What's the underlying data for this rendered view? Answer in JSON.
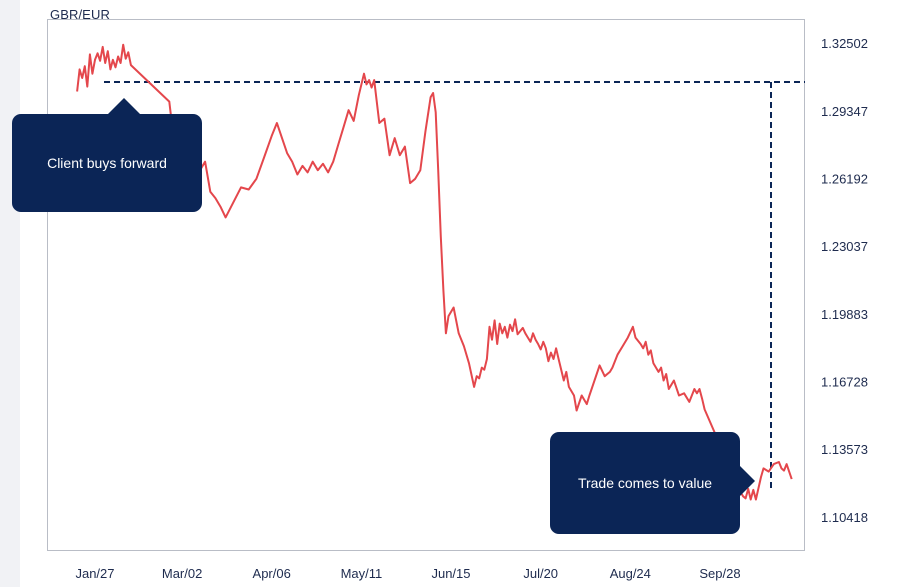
{
  "chart_data": {
    "type": "line",
    "title": "GBR/EUR",
    "x_ticks": [
      "Jan/27",
      "Mar/02",
      "Apr/06",
      "May/11",
      "Jun/15",
      "Jul/20",
      "Aug/24",
      "Sep/28"
    ],
    "y_ticks": [
      "1.32502",
      "1.29347",
      "1.26192",
      "1.23037",
      "1.19883",
      "1.16728",
      "1.13573",
      "1.10418"
    ],
    "ylim": [
      1.0885,
      1.3365
    ],
    "grid": false,
    "series": [
      {
        "color": "#e4474c",
        "points": [
          [
            "Jan/20",
            1.3027
          ],
          [
            "Jan/21",
            1.313
          ],
          [
            "Jan/22",
            1.309
          ],
          [
            "Jan/23",
            1.3145
          ],
          [
            "Jan/24",
            1.305
          ],
          [
            "Jan/25",
            1.32
          ],
          [
            "Jan/26",
            1.311
          ],
          [
            "Jan/27",
            1.3175
          ],
          [
            "Jan/28",
            1.3205
          ],
          [
            "Jan/29",
            1.317
          ],
          [
            "Jan/30",
            1.3235
          ],
          [
            "Jan/31",
            1.316
          ],
          [
            "Feb/01",
            1.3215
          ],
          [
            "Feb/02",
            1.313
          ],
          [
            "Feb/03",
            1.3175
          ],
          [
            "Feb/04",
            1.314
          ],
          [
            "Feb/05",
            1.319
          ],
          [
            "Feb/06",
            1.316
          ],
          [
            "Feb/07",
            1.3245
          ],
          [
            "Feb/08",
            1.318
          ],
          [
            "Feb/09",
            1.321
          ],
          [
            "Feb/10",
            1.315
          ],
          [
            "Feb/25",
            1.298
          ],
          [
            "Feb/26",
            1.288
          ],
          [
            "Feb/27",
            1.278
          ],
          [
            "Feb/28",
            1.282
          ],
          [
            "Mar/01",
            1.275
          ],
          [
            "Mar/03",
            1.28
          ],
          [
            "Mar/05",
            1.268
          ],
          [
            "Mar/07",
            1.272
          ],
          [
            "Mar/09",
            1.266
          ],
          [
            "Mar/11",
            1.27
          ],
          [
            "Mar/13",
            1.256
          ],
          [
            "Mar/15",
            1.253
          ],
          [
            "Mar/17",
            1.249
          ],
          [
            "Mar/19",
            1.244
          ],
          [
            "Mar/22",
            1.251
          ],
          [
            "Mar/25",
            1.258
          ],
          [
            "Mar/28",
            1.257
          ],
          [
            "Mar/31",
            1.262
          ],
          [
            "Apr/03",
            1.272
          ],
          [
            "Apr/06",
            1.282
          ],
          [
            "Apr/08",
            1.288
          ],
          [
            "Apr/10",
            1.281
          ],
          [
            "Apr/12",
            1.274
          ],
          [
            "Apr/14",
            1.27
          ],
          [
            "Apr/16",
            1.264
          ],
          [
            "Apr/18",
            1.268
          ],
          [
            "Apr/20",
            1.265
          ],
          [
            "Apr/22",
            1.27
          ],
          [
            "Apr/24",
            1.266
          ],
          [
            "Apr/26",
            1.269
          ],
          [
            "Apr/28",
            1.265
          ],
          [
            "Apr/30",
            1.27
          ],
          [
            "May/02",
            1.278
          ],
          [
            "May/04",
            1.286
          ],
          [
            "May/06",
            1.294
          ],
          [
            "May/08",
            1.289
          ],
          [
            "May/10",
            1.301
          ],
          [
            "May/12",
            1.311
          ],
          [
            "May/13",
            1.306
          ],
          [
            "May/14",
            1.308
          ],
          [
            "May/15",
            1.3045
          ],
          [
            "May/16",
            1.308
          ],
          [
            "May/18",
            1.288
          ],
          [
            "May/20",
            1.29
          ],
          [
            "May/22",
            1.273
          ],
          [
            "May/24",
            1.281
          ],
          [
            "May/26",
            1.273
          ],
          [
            "May/28",
            1.277
          ],
          [
            "May/30",
            1.26
          ],
          [
            "Jun/01",
            1.262
          ],
          [
            "Jun/03",
            1.266
          ],
          [
            "Jun/05",
            1.284
          ],
          [
            "Jun/07",
            1.3
          ],
          [
            "Jun/08",
            1.302
          ],
          [
            "Jun/09",
            1.293
          ],
          [
            "Jun/10",
            1.266
          ],
          [
            "Jun/11",
            1.235
          ],
          [
            "Jun/12",
            1.21
          ],
          [
            "Jun/13",
            1.19
          ],
          [
            "Jun/14",
            1.198
          ],
          [
            "Jun/16",
            1.202
          ],
          [
            "Jun/18",
            1.19
          ],
          [
            "Jun/20",
            1.184
          ],
          [
            "Jun/22",
            1.176
          ],
          [
            "Jun/24",
            1.165
          ],
          [
            "Jun/25",
            1.17
          ],
          [
            "Jun/26",
            1.169
          ],
          [
            "Jun/27",
            1.174
          ],
          [
            "Jun/28",
            1.173
          ],
          [
            "Jun/29",
            1.178
          ],
          [
            "Jun/30",
            1.193
          ],
          [
            "Jul/01",
            1.187
          ],
          [
            "Jul/02",
            1.196
          ],
          [
            "Jul/03",
            1.185
          ],
          [
            "Jul/04",
            1.1945
          ],
          [
            "Jul/05",
            1.19
          ],
          [
            "Jul/06",
            1.193
          ],
          [
            "Jul/07",
            1.188
          ],
          [
            "Jul/08",
            1.194
          ],
          [
            "Jul/09",
            1.191
          ],
          [
            "Jul/10",
            1.1965
          ],
          [
            "Jul/11",
            1.1895
          ],
          [
            "Jul/12",
            1.191
          ],
          [
            "Jul/13",
            1.1925
          ],
          [
            "Jul/14",
            1.19
          ],
          [
            "Jul/15",
            1.188
          ],
          [
            "Jul/16",
            1.186
          ],
          [
            "Jul/17",
            1.19
          ],
          [
            "Jul/18",
            1.187
          ],
          [
            "Jul/19",
            1.185
          ],
          [
            "Jul/20",
            1.1825
          ],
          [
            "Jul/21",
            1.186
          ],
          [
            "Jul/22",
            1.183
          ],
          [
            "Jul/23",
            1.177
          ],
          [
            "Jul/24",
            1.181
          ],
          [
            "Jul/25",
            1.178
          ],
          [
            "Jul/26",
            1.183
          ],
          [
            "Jul/27",
            1.178
          ],
          [
            "Jul/29",
            1.168
          ],
          [
            "Jul/30",
            1.172
          ],
          [
            "Jul/31",
            1.165
          ],
          [
            "Aug/02",
            1.161
          ],
          [
            "Aug/03",
            1.154
          ],
          [
            "Aug/05",
            1.161
          ],
          [
            "Aug/06",
            1.159
          ],
          [
            "Aug/07",
            1.157
          ],
          [
            "Aug/08",
            1.161
          ],
          [
            "Aug/10",
            1.168
          ],
          [
            "Aug/12",
            1.175
          ],
          [
            "Aug/14",
            1.17
          ],
          [
            "Aug/16",
            1.172
          ],
          [
            "Aug/17",
            1.174
          ],
          [
            "Aug/19",
            1.18
          ],
          [
            "Aug/21",
            1.184
          ],
          [
            "Aug/23",
            1.188
          ],
          [
            "Aug/25",
            1.193
          ],
          [
            "Aug/26",
            1.188
          ],
          [
            "Aug/28",
            1.185
          ],
          [
            "Aug/29",
            1.183
          ],
          [
            "Aug/30",
            1.186
          ],
          [
            "Aug/31",
            1.18
          ],
          [
            "Sep/01",
            1.182
          ],
          [
            "Sep/02",
            1.176
          ],
          [
            "Sep/04",
            1.172
          ],
          [
            "Sep/05",
            1.174
          ],
          [
            "Sep/06",
            1.168
          ],
          [
            "Sep/07",
            1.171
          ],
          [
            "Sep/08",
            1.164
          ],
          [
            "Sep/10",
            1.168
          ],
          [
            "Sep/12",
            1.161
          ],
          [
            "Sep/14",
            1.162
          ],
          [
            "Sep/16",
            1.158
          ],
          [
            "Sep/18",
            1.164
          ],
          [
            "Sep/19",
            1.162
          ],
          [
            "Sep/20",
            1.164
          ],
          [
            "Sep/21",
            1.1595
          ],
          [
            "Sep/22",
            1.1545
          ],
          [
            "Oct/06",
            1.116
          ],
          [
            "Oct/07",
            1.114
          ],
          [
            "Oct/08",
            1.113
          ],
          [
            "Oct/09",
            1.1175
          ],
          [
            "Oct/10",
            1.1125
          ],
          [
            "Oct/11",
            1.117
          ],
          [
            "Oct/12",
            1.1125
          ],
          [
            "Oct/14",
            1.123
          ],
          [
            "Oct/15",
            1.127
          ],
          [
            "Oct/17",
            1.1255
          ],
          [
            "Oct/19",
            1.129
          ],
          [
            "Oct/21",
            1.13
          ],
          [
            "Oct/22",
            1.127
          ],
          [
            "Oct/23",
            1.126
          ],
          [
            "Oct/24",
            1.129
          ],
          [
            "Oct/26",
            1.122
          ]
        ]
      }
    ],
    "annotations": [
      {
        "type": "callout",
        "text": "Client buys forward"
      },
      {
        "type": "callout",
        "text": "Trade comes to value"
      }
    ]
  },
  "colors": {
    "line": "#e4474c",
    "callout_bg": "#0b2556",
    "dashed_marker": "#0b2556",
    "tick_text": "#1e2b4e",
    "frame": "#b9bdc6"
  }
}
